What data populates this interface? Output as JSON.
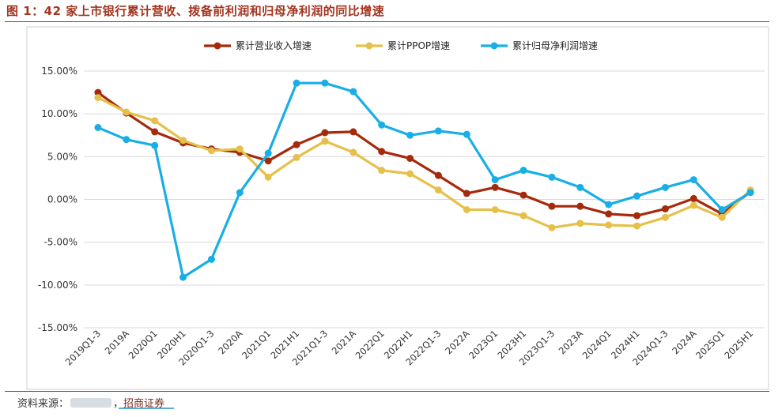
{
  "figure": {
    "title": "图 1：42 家上市银行累计营收、拨备前利润和归母净利润的同比增速",
    "source_prefix": "资料来源：",
    "source_suffix": "，",
    "source_brand": "招商证券"
  },
  "colors": {
    "accent": "#a3341f",
    "series": [
      "#a52a0c",
      "#e5c04a",
      "#18aee6"
    ]
  },
  "chart_data": {
    "type": "line",
    "title": "",
    "xlabel": "",
    "ylabel": "",
    "ylim": [
      -15,
      15
    ],
    "yticks": [
      15,
      10,
      5,
      0,
      -5,
      -10,
      -15
    ],
    "ytick_labels": [
      "15.00%",
      "10.00%",
      "5.00%",
      "0.00%",
      "-5.00%",
      "-10.00%",
      "-15.00%"
    ],
    "grid": true,
    "legend_position": "top-center",
    "categories": [
      "2019Q1-3",
      "2019A",
      "2020Q1",
      "2020H1",
      "2020Q1-3",
      "2020A",
      "2021Q1",
      "2021H1",
      "2021Q1-3",
      "2021A",
      "2022Q1",
      "2022H1",
      "2022Q1-3",
      "2022A",
      "2023Q1",
      "2023H1",
      "2023Q1-3",
      "2023A",
      "2024Q1",
      "2024H1",
      "2024Q1-3",
      "2024A",
      "2025Q1",
      "2025H1"
    ],
    "series": [
      {
        "name": "累计营业收入增速",
        "color": "#a52a0c",
        "values": [
          12.5,
          10.1,
          7.9,
          6.6,
          5.9,
          5.5,
          4.5,
          6.4,
          7.8,
          7.9,
          5.6,
          4.8,
          2.8,
          0.7,
          1.4,
          0.5,
          -0.8,
          -0.8,
          -1.7,
          -1.9,
          -1.1,
          0.1,
          -1.7,
          0.9
        ]
      },
      {
        "name": "累计PPOP增速",
        "color": "#e5c04a",
        "values": [
          11.9,
          10.2,
          9.2,
          6.9,
          5.7,
          5.9,
          2.6,
          4.9,
          6.8,
          5.5,
          3.4,
          3.0,
          1.1,
          -1.2,
          -1.2,
          -1.9,
          -3.3,
          -2.8,
          -3.0,
          -3.1,
          -2.1,
          -0.7,
          -2.1,
          1.1
        ]
      },
      {
        "name": "累计归母净利润增速",
        "color": "#18aee6",
        "values": [
          8.4,
          7.0,
          6.3,
          -9.1,
          -7.0,
          0.8,
          5.4,
          13.6,
          13.6,
          12.6,
          8.7,
          7.5,
          8.0,
          7.6,
          2.3,
          3.4,
          2.6,
          1.4,
          -0.6,
          0.4,
          1.4,
          2.3,
          -1.2,
          0.8
        ]
      }
    ]
  }
}
